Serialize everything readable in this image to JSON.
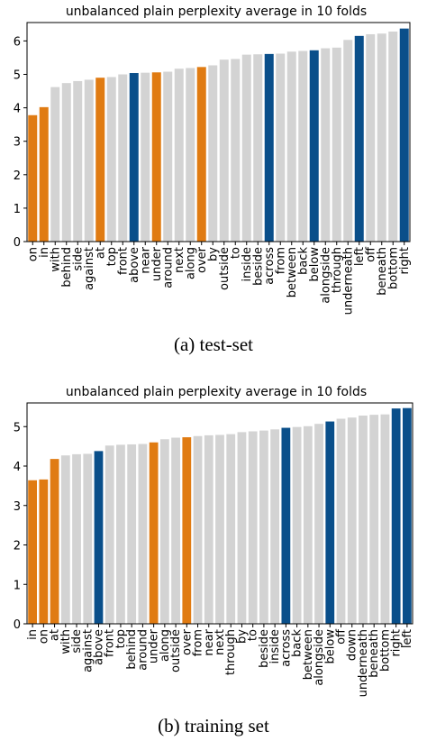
{
  "chart_data": [
    {
      "type": "bar",
      "title": "unbalanced plain perplexity average in 10 folds",
      "caption": "(a) test-set",
      "xlabel": "",
      "ylabel": "",
      "ylim": [
        0,
        6.55
      ],
      "yticks": [
        0,
        1,
        2,
        3,
        4,
        5,
        6
      ],
      "grid": false,
      "colors": {
        "orange": "#e07b12",
        "blue": "#0a4f8a",
        "gray": "#d3d3d3"
      },
      "categories": [
        "on",
        "in",
        "with",
        "behind",
        "side",
        "against",
        "at",
        "top",
        "front",
        "above",
        "near",
        "under",
        "around",
        "next",
        "along",
        "over",
        "by",
        "outside",
        "to",
        "inside",
        "beside",
        "across",
        "from",
        "between",
        "back",
        "below",
        "alongside",
        "through",
        "underneath",
        "left",
        "off",
        "beneath",
        "bottom",
        "right"
      ],
      "values": [
        3.78,
        4.02,
        4.62,
        4.74,
        4.8,
        4.84,
        4.9,
        4.92,
        5.0,
        5.04,
        5.05,
        5.06,
        5.08,
        5.17,
        5.19,
        5.22,
        5.27,
        5.44,
        5.46,
        5.59,
        5.6,
        5.61,
        5.62,
        5.68,
        5.7,
        5.72,
        5.78,
        5.8,
        6.03,
        6.15,
        6.2,
        6.22,
        6.28,
        6.37
      ],
      "bar_colors": [
        "orange",
        "orange",
        "gray",
        "gray",
        "gray",
        "gray",
        "orange",
        "gray",
        "gray",
        "blue",
        "gray",
        "orange",
        "gray",
        "gray",
        "gray",
        "orange",
        "gray",
        "gray",
        "gray",
        "gray",
        "gray",
        "blue",
        "gray",
        "gray",
        "gray",
        "blue",
        "gray",
        "gray",
        "gray",
        "blue",
        "gray",
        "gray",
        "gray",
        "blue"
      ]
    },
    {
      "type": "bar",
      "title": "unbalanced plain perplexity average in 10 folds",
      "caption": "(b) training set",
      "xlabel": "",
      "ylabel": "",
      "ylim": [
        0,
        5.6
      ],
      "yticks": [
        0,
        1,
        2,
        3,
        4,
        5
      ],
      "grid": false,
      "colors": {
        "orange": "#e07b12",
        "blue": "#0a4f8a",
        "gray": "#d3d3d3"
      },
      "categories": [
        "in",
        "on",
        "at",
        "with",
        "side",
        "against",
        "above",
        "front",
        "top",
        "behind",
        "around",
        "under",
        "along",
        "outside",
        "over",
        "from",
        "near",
        "next",
        "through",
        "by",
        "to",
        "beside",
        "inside",
        "across",
        "back",
        "between",
        "alongside",
        "below",
        "off",
        "down",
        "underneath",
        "beneath",
        "bottom",
        "right",
        "left"
      ],
      "values": [
        3.64,
        3.66,
        4.18,
        4.27,
        4.3,
        4.31,
        4.38,
        4.52,
        4.54,
        4.55,
        4.56,
        4.6,
        4.68,
        4.72,
        4.73,
        4.76,
        4.78,
        4.79,
        4.81,
        4.86,
        4.88,
        4.9,
        4.93,
        4.97,
        4.99,
        5.01,
        5.07,
        5.13,
        5.2,
        5.23,
        5.28,
        5.3,
        5.31,
        5.46,
        5.47
      ],
      "bar_colors": [
        "orange",
        "orange",
        "orange",
        "gray",
        "gray",
        "gray",
        "blue",
        "gray",
        "gray",
        "gray",
        "gray",
        "orange",
        "gray",
        "gray",
        "orange",
        "gray",
        "gray",
        "gray",
        "gray",
        "gray",
        "gray",
        "gray",
        "gray",
        "blue",
        "gray",
        "gray",
        "gray",
        "blue",
        "gray",
        "gray",
        "gray",
        "gray",
        "gray",
        "blue",
        "blue"
      ]
    }
  ]
}
